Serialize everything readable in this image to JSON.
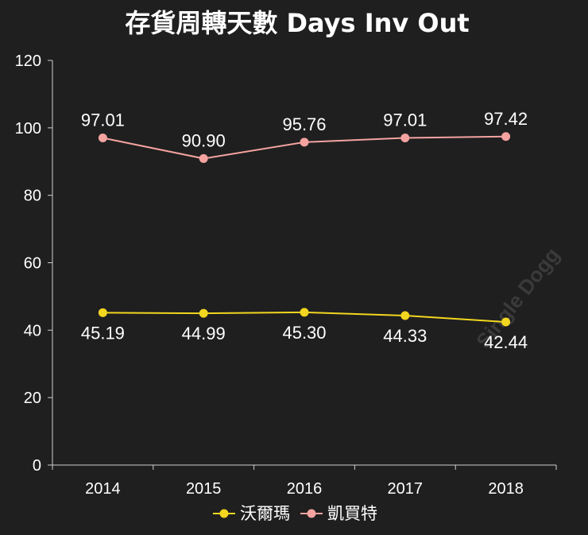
{
  "chart_data": {
    "type": "line",
    "title": "存貨周轉天數 Days Inv Out",
    "categories": [
      "2014",
      "2015",
      "2016",
      "2017",
      "2018"
    ],
    "ylim": [
      0,
      120
    ],
    "yticks": [
      0,
      20,
      40,
      60,
      80,
      100,
      120
    ],
    "grid": false,
    "legend": "bottom",
    "series": [
      {
        "name": "沃爾瑪",
        "color": "#f2d61f",
        "values": [
          45.19,
          44.99,
          45.3,
          44.33,
          42.44
        ],
        "labels": [
          "45.19",
          "44.99",
          "45.30",
          "44.33",
          "42.44"
        ]
      },
      {
        "name": "凱買特",
        "color": "#f4a3a0",
        "values": [
          97.01,
          90.9,
          95.76,
          97.01,
          97.42
        ],
        "labels": [
          "97.01",
          "90.90",
          "95.76",
          "97.01",
          "97.42"
        ]
      }
    ]
  },
  "watermark": "Single Dogg"
}
